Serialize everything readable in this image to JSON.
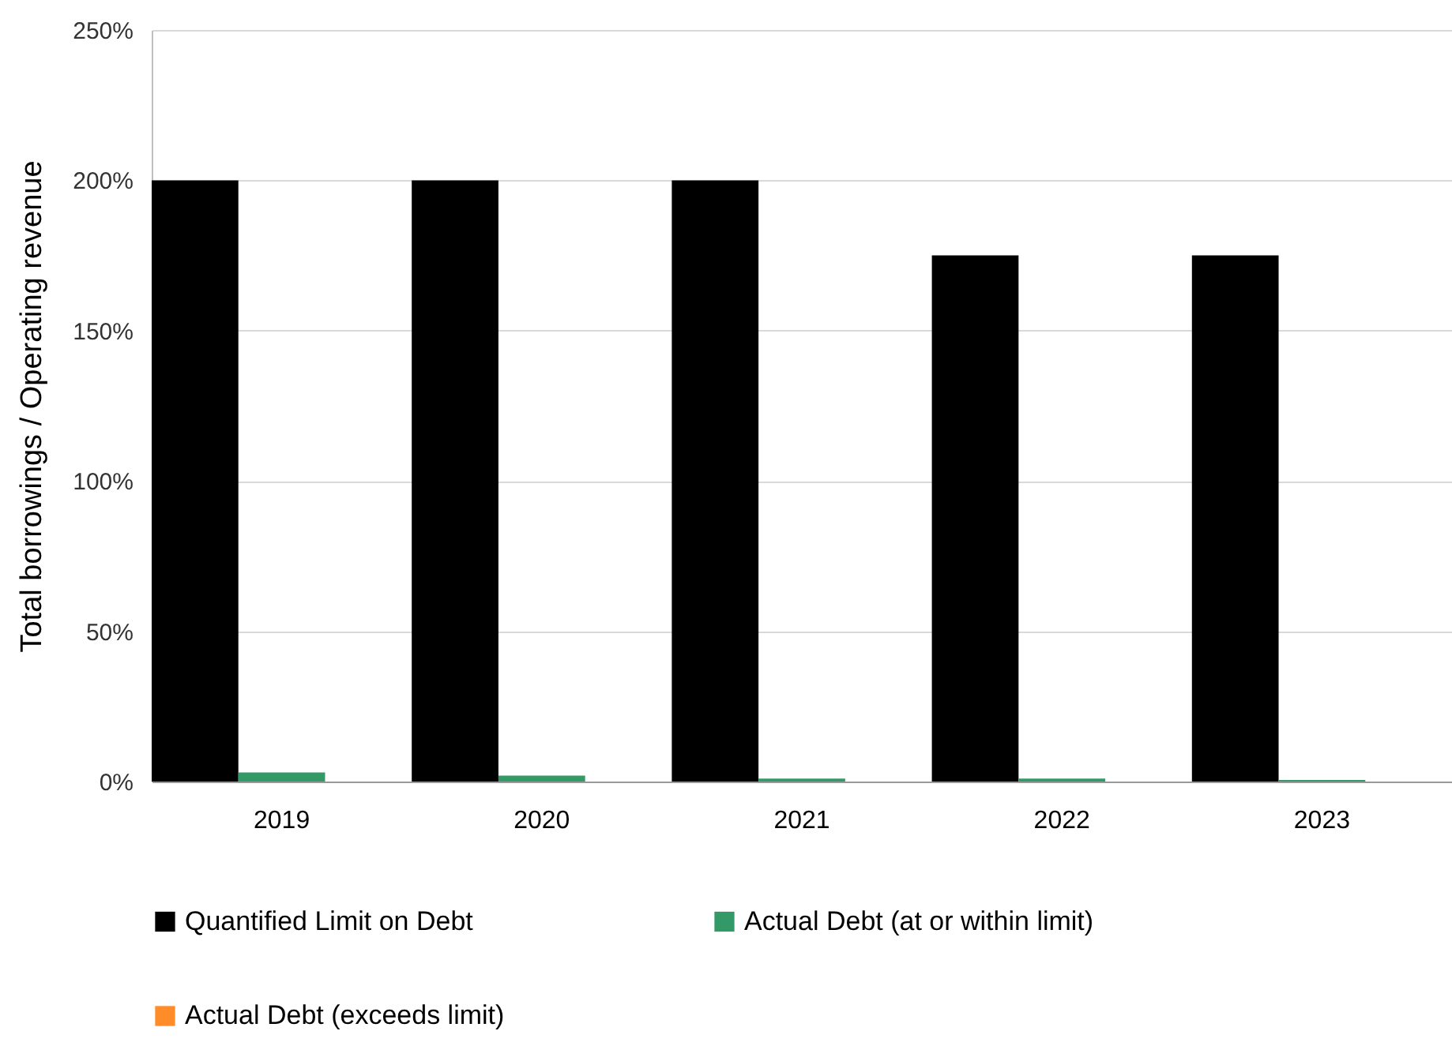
{
  "chart_data": {
    "type": "bar",
    "ylabel": "Total borrowings  / Operating revenue",
    "categories": [
      "2019",
      "2020",
      "2021",
      "2022",
      "2023"
    ],
    "series": [
      {
        "name": "Quantified Limit on Debt",
        "color": "#000000",
        "values": [
          200,
          200,
          200,
          175,
          175
        ]
      },
      {
        "name": "Actual Debt (at or within limit)",
        "color": "#339966",
        "values": [
          3,
          2,
          1,
          1,
          0.5
        ]
      },
      {
        "name": "Actual Debt (exceeds limit)",
        "color": "#ff8c28",
        "values": [
          null,
          null,
          null,
          null,
          null
        ]
      }
    ],
    "ylim": [
      0,
      250
    ],
    "yticks": [
      {
        "value": 0,
        "label": "0%"
      },
      {
        "value": 50,
        "label": "50%"
      },
      {
        "value": 100,
        "label": "100%"
      },
      {
        "value": 150,
        "label": "150%"
      },
      {
        "value": 200,
        "label": "200%"
      },
      {
        "value": 250,
        "label": "250%"
      }
    ],
    "grid": "y",
    "legend": "bottom"
  }
}
